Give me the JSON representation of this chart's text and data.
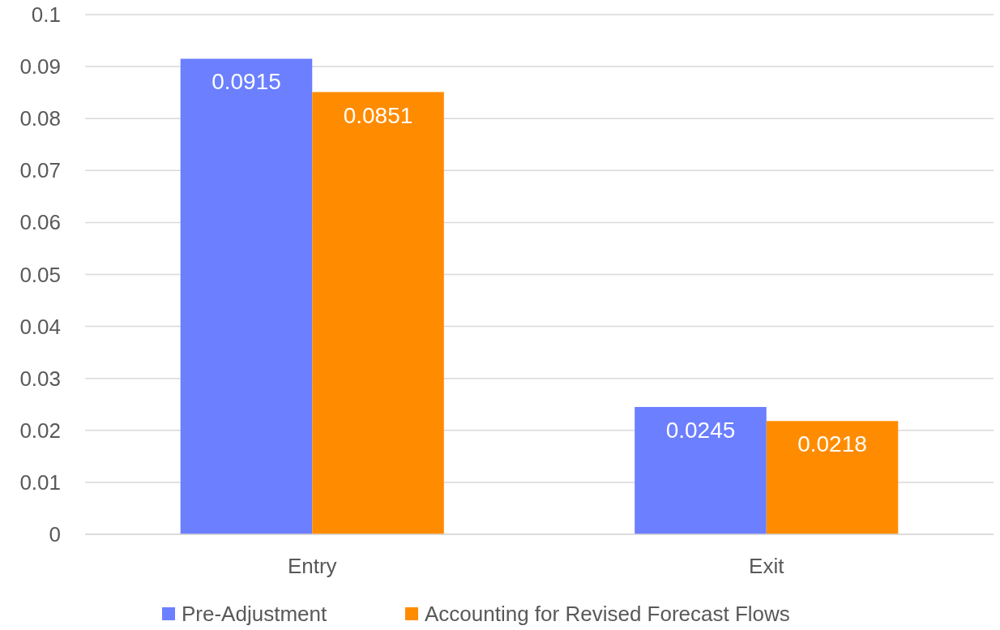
{
  "chart_data": {
    "type": "bar",
    "categories": [
      "Entry",
      "Exit"
    ],
    "series": [
      {
        "name": "Pre-Adjustment",
        "color": "#6b7fff",
        "values": [
          0.0915,
          0.0245
        ]
      },
      {
        "name": "Accounting for Revised Forecast Flows",
        "color": "#ff8c00",
        "values": [
          0.0851,
          0.0218
        ]
      }
    ],
    "ylim": [
      0,
      0.1
    ],
    "yticks": [
      0,
      0.01,
      0.02,
      0.03,
      0.04,
      0.05,
      0.06,
      0.07,
      0.08,
      0.09,
      0.1
    ],
    "grid": "y",
    "data_labels": true,
    "legend": "bottom"
  }
}
